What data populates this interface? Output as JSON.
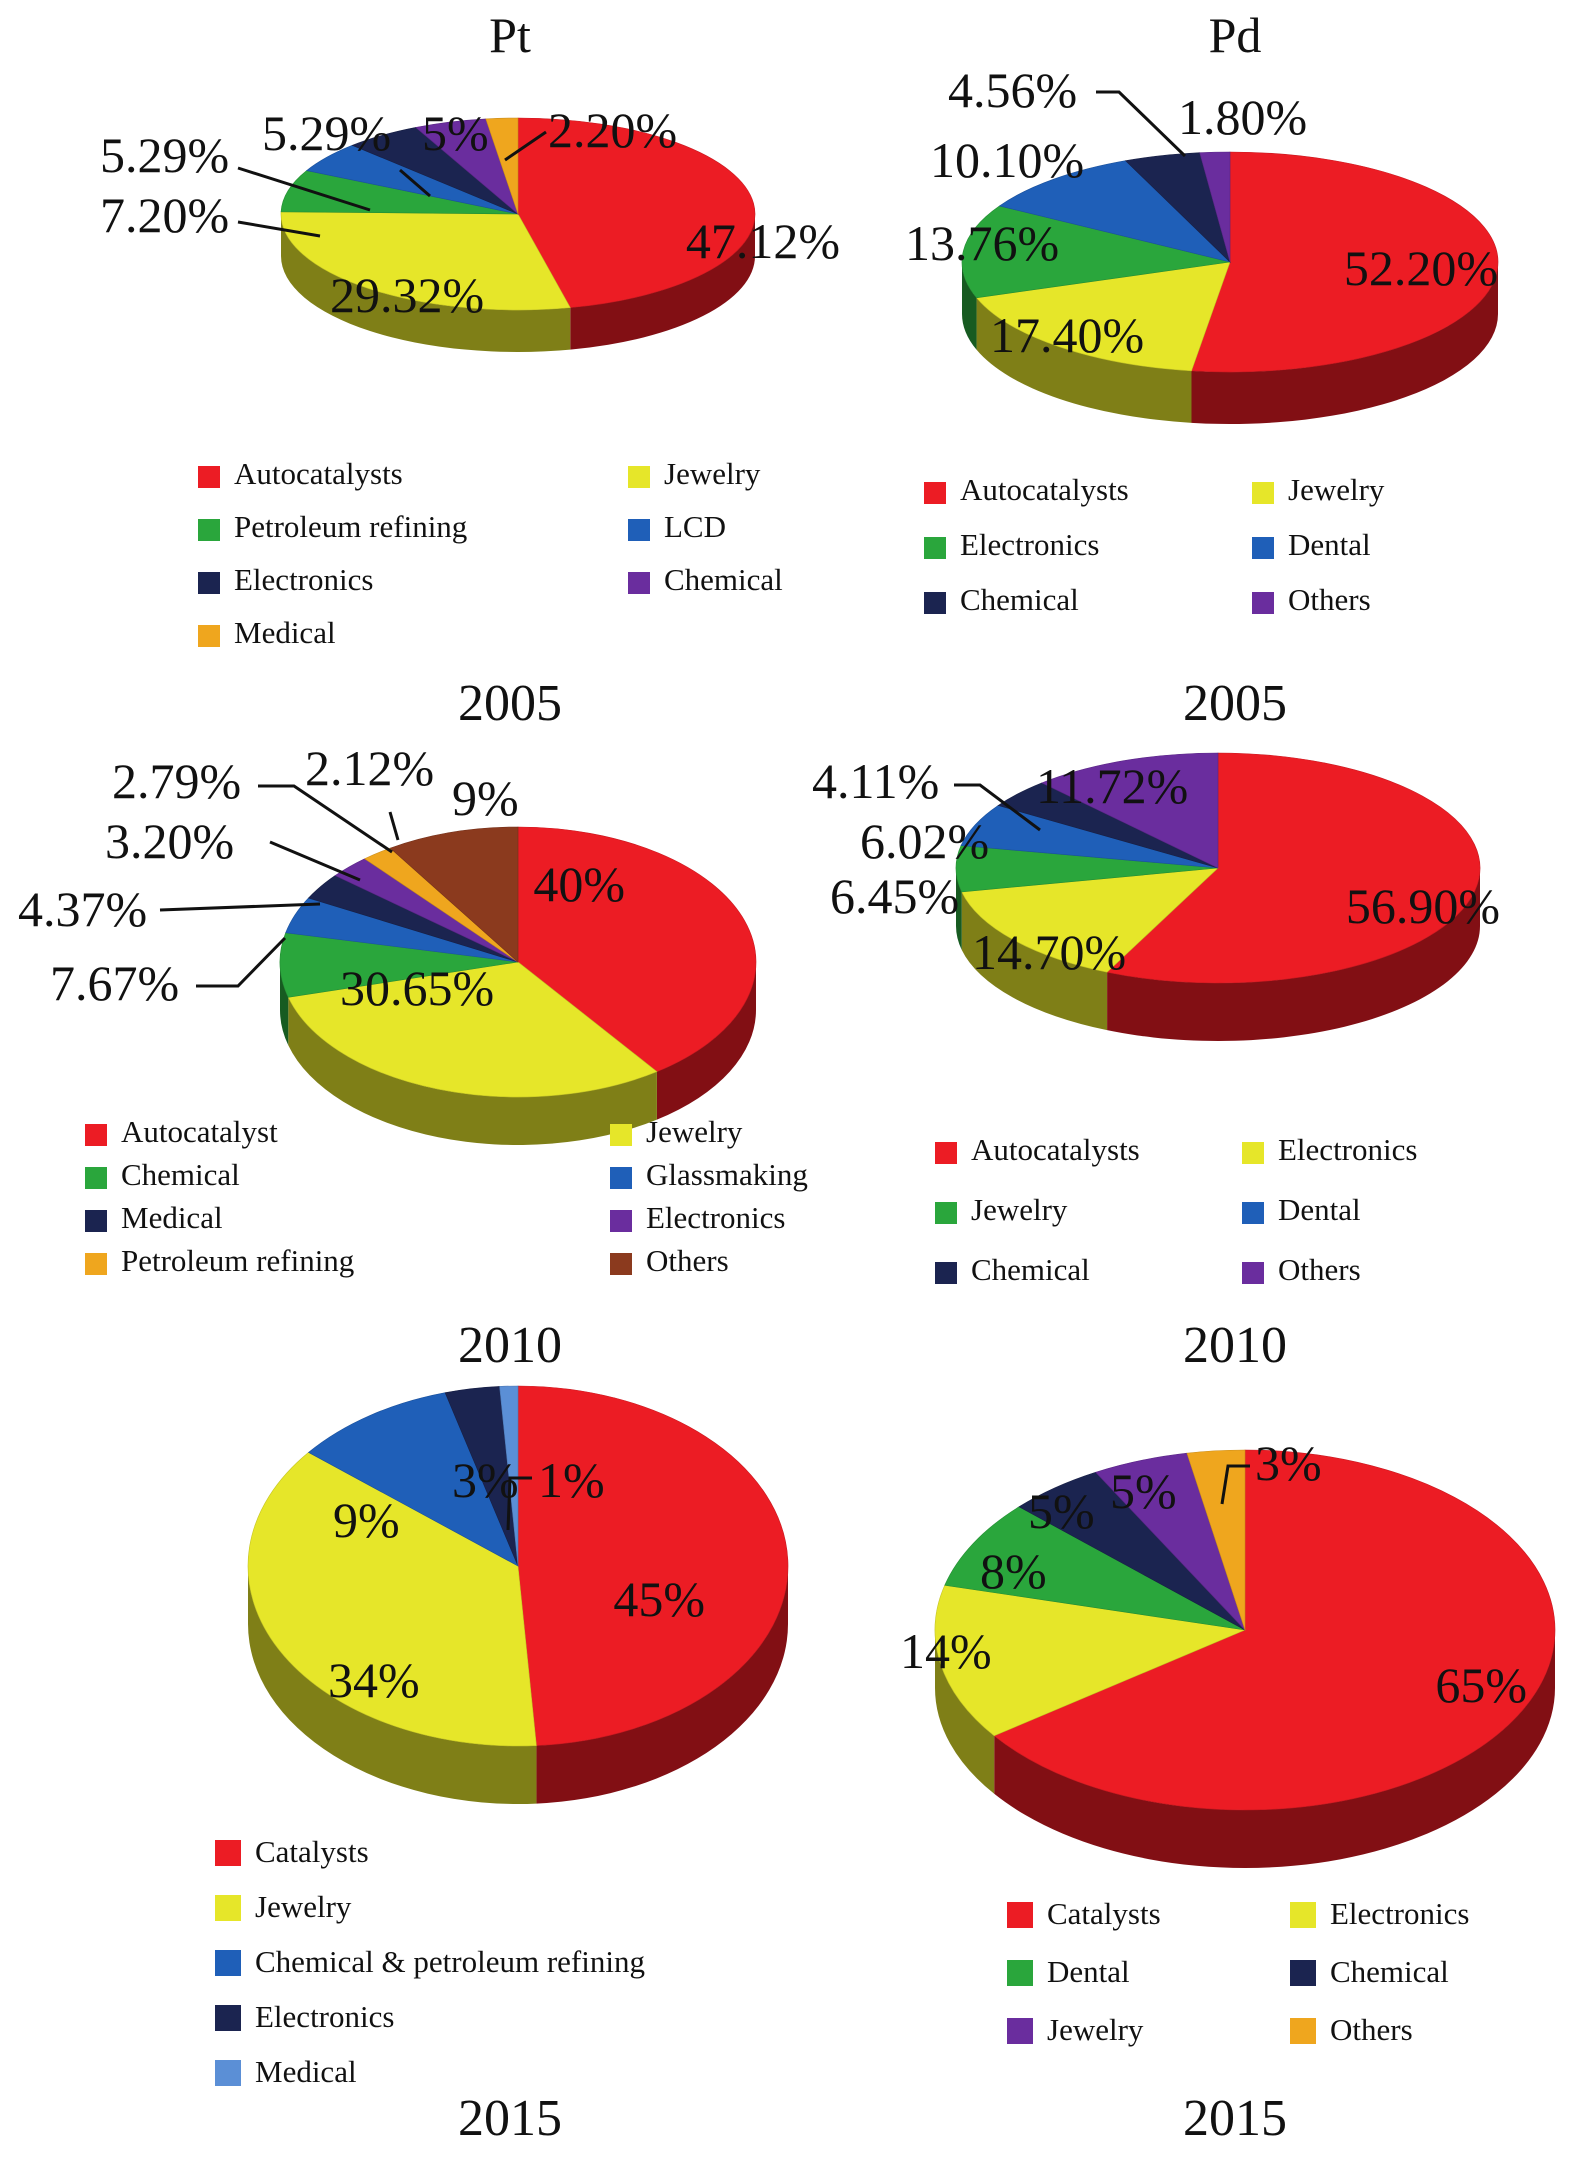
{
  "columns": [
    "Pt",
    "Pd"
  ],
  "chart_data": [
    {
      "type": "pie",
      "metal": "Pt",
      "year": "2005",
      "slices": [
        {
          "label": "Autocatalysts",
          "value": 47.12,
          "text": "47.12%",
          "color": "#ec1c24"
        },
        {
          "label": "Jewelry",
          "value": 29.32,
          "text": "29.32%",
          "color": "#e6e629"
        },
        {
          "label": "Petroleum refining",
          "value": 7.2,
          "text": "7.20%",
          "color": "#2aa63c"
        },
        {
          "label": "LCD",
          "value": 5.29,
          "text": "5.29%",
          "color": "#1f5fb8"
        },
        {
          "label": "Electronics",
          "value": 5.29,
          "text": "5.29%",
          "color": "#1b2450"
        },
        {
          "label": "Chemical",
          "value": 5.0,
          "text": "5%",
          "color": "#6a2d9e"
        },
        {
          "label": "Medical",
          "value": 2.2,
          "text": "2.20%",
          "color": "#efa61e"
        }
      ],
      "legend": [
        "Autocatalysts",
        "Jewelry",
        "Petroleum refining",
        "LCD",
        "Electronics",
        "Chemical",
        "Medical"
      ]
    },
    {
      "type": "pie",
      "metal": "Pd",
      "year": "2005",
      "slices": [
        {
          "label": "Autocatalysts",
          "value": 52.2,
          "text": "52.20%",
          "color": "#ec1c24"
        },
        {
          "label": "Jewelry",
          "value": 17.4,
          "text": "17.40%",
          "color": "#e6e629"
        },
        {
          "label": "Electronics",
          "value": 13.76,
          "text": "13.76%",
          "color": "#2aa63c"
        },
        {
          "label": "Dental",
          "value": 10.1,
          "text": "10.10%",
          "color": "#1f5fb8"
        },
        {
          "label": "Chemical",
          "value": 4.56,
          "text": "4.56%",
          "color": "#1b2450"
        },
        {
          "label": "Others",
          "value": 1.8,
          "text": "1.80%",
          "color": "#6a2d9e"
        }
      ],
      "legend": [
        "Autocatalysts",
        "Jewelry",
        "Electronics",
        "Dental",
        "Chemical",
        "Others"
      ]
    },
    {
      "type": "pie",
      "metal": "Pt",
      "year": "2010",
      "slices": [
        {
          "label": "Autocatalyst",
          "value": 40,
          "text": "40%",
          "color": "#ec1c24"
        },
        {
          "label": "Jewelry",
          "value": 30.65,
          "text": "30.65%",
          "color": "#e6e629"
        },
        {
          "label": "Chemical",
          "value": 7.67,
          "text": "7.67%",
          "color": "#2aa63c"
        },
        {
          "label": "Glassmaking",
          "value": 4.37,
          "text": "4.37%",
          "color": "#1f5fb8"
        },
        {
          "label": "Medical",
          "value": 3.2,
          "text": "3.20%",
          "color": "#1b2450"
        },
        {
          "label": "Electronics",
          "value": 2.79,
          "text": "2.79%",
          "color": "#6a2d9e"
        },
        {
          "label": "Petroleum refining",
          "value": 2.12,
          "text": "2.12%",
          "color": "#efa61e"
        },
        {
          "label": "Others",
          "value": 9,
          "text": "9%",
          "color": "#8b3a1e"
        }
      ],
      "legend": [
        "Autocatalyst",
        "Jewelry",
        "Chemical",
        "Glassmaking",
        "Medical",
        "Electronics",
        "Petroleum refining",
        "Others"
      ]
    },
    {
      "type": "pie",
      "metal": "Pd",
      "year": "2010",
      "slices": [
        {
          "label": "Autocatalysts",
          "value": 56.9,
          "text": "56.90%",
          "color": "#ec1c24"
        },
        {
          "label": "Electronics",
          "value": 14.7,
          "text": "14.70%",
          "color": "#e6e629"
        },
        {
          "label": "Jewelry",
          "value": 6.45,
          "text": "6.45%",
          "color": "#2aa63c"
        },
        {
          "label": "Dental",
          "value": 6.02,
          "text": "6.02%",
          "color": "#1f5fb8"
        },
        {
          "label": "Chemical",
          "value": 4.11,
          "text": "4.11%",
          "color": "#1b2450"
        },
        {
          "label": "Others",
          "value": 11.72,
          "text": "11.72%",
          "color": "#6a2d9e"
        }
      ],
      "legend": [
        "Autocatalysts",
        "Electronics",
        "Jewelry",
        "Dental",
        "Chemical",
        "Others"
      ]
    },
    {
      "type": "pie",
      "metal": "Pt",
      "year": "2015",
      "slices": [
        {
          "label": "Catalysts",
          "value": 45,
          "text": "45%",
          "color": "#ec1c24"
        },
        {
          "label": "Jewelry",
          "value": 34,
          "text": "34%",
          "color": "#e6e629"
        },
        {
          "label": "Chemical & petroleum refining",
          "value": 9,
          "text": "9%",
          "color": "#1f5fb8"
        },
        {
          "label": "Electronics",
          "value": 3,
          "text": "3%",
          "color": "#1b2450"
        },
        {
          "label": "Medical",
          "value": 1,
          "text": "1%",
          "color": "#5b8fd6"
        }
      ],
      "legend": [
        "Catalysts",
        "Jewelry",
        "Chemical & petroleum refining",
        "Electronics",
        "Medical"
      ]
    },
    {
      "type": "pie",
      "metal": "Pd",
      "year": "2015",
      "slices": [
        {
          "label": "Catalysts",
          "value": 65,
          "text": "65%",
          "color": "#ec1c24"
        },
        {
          "label": "Electronics",
          "value": 14,
          "text": "14%",
          "color": "#e6e629"
        },
        {
          "label": "Dental",
          "value": 8,
          "text": "8%",
          "color": "#2aa63c"
        },
        {
          "label": "Chemical",
          "value": 5,
          "text": "5%",
          "color": "#1b2450"
        },
        {
          "label": "Jewelry",
          "value": 5,
          "text": "5%",
          "color": "#6a2d9e"
        },
        {
          "label": "Others",
          "value": 3,
          "text": "3%",
          "color": "#efa61e"
        }
      ],
      "legend": [
        "Catalysts",
        "Electronics",
        "Dental",
        "Chemical",
        "Jewelry",
        "Others"
      ]
    }
  ]
}
